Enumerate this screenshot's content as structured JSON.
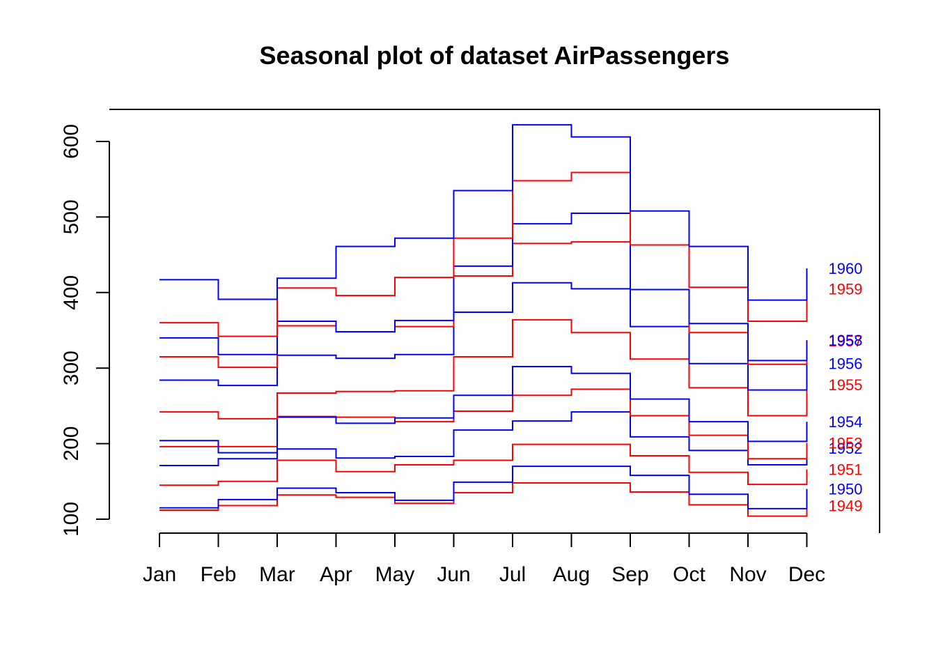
{
  "chart_data": {
    "type": "line",
    "step": true,
    "title": "Seasonal plot of dataset AirPassengers",
    "xlabel": "",
    "ylabel": "",
    "categories": [
      "Jan",
      "Feb",
      "Mar",
      "Apr",
      "May",
      "Jun",
      "Jul",
      "Aug",
      "Sep",
      "Oct",
      "Nov",
      "Dec"
    ],
    "yticks": [
      "100",
      "200",
      "300",
      "400",
      "500",
      "600"
    ],
    "ylim": [
      100,
      622
    ],
    "grid": false,
    "legend": "none",
    "series_labels_position": "right",
    "colors": {
      "odd_years": "#ff0000",
      "even_years": "#0000ff",
      "axis": "#000000",
      "background": "#ffffff"
    },
    "series": [
      {
        "name": "1949",
        "color": "#ff0000",
        "values": [
          112,
          118,
          132,
          129,
          121,
          135,
          148,
          148,
          136,
          119,
          104,
          118
        ]
      },
      {
        "name": "1950",
        "color": "#0000ff",
        "values": [
          115,
          126,
          141,
          135,
          125,
          149,
          170,
          170,
          158,
          133,
          114,
          140
        ]
      },
      {
        "name": "1951",
        "color": "#ff0000",
        "values": [
          145,
          150,
          178,
          163,
          172,
          178,
          199,
          199,
          184,
          162,
          146,
          166
        ]
      },
      {
        "name": "1952",
        "color": "#0000ff",
        "values": [
          171,
          180,
          193,
          181,
          183,
          218,
          230,
          242,
          209,
          191,
          172,
          194
        ]
      },
      {
        "name": "1953",
        "color": "#ff0000",
        "values": [
          196,
          196,
          236,
          235,
          229,
          243,
          264,
          272,
          237,
          211,
          180,
          201
        ]
      },
      {
        "name": "1954",
        "color": "#0000ff",
        "values": [
          204,
          188,
          235,
          227,
          234,
          264,
          302,
          293,
          259,
          229,
          203,
          229
        ]
      },
      {
        "name": "1955",
        "color": "#ff0000",
        "values": [
          242,
          233,
          267,
          269,
          270,
          315,
          364,
          347,
          312,
          274,
          237,
          278
        ]
      },
      {
        "name": "1956",
        "color": "#0000ff",
        "values": [
          284,
          277,
          317,
          313,
          318,
          374,
          413,
          405,
          355,
          306,
          271,
          306
        ]
      },
      {
        "name": "1957",
        "color": "#ff0000",
        "values": [
          315,
          301,
          356,
          348,
          355,
          422,
          465,
          467,
          404,
          347,
          305,
          336
        ]
      },
      {
        "name": "1958",
        "color": "#0000ff",
        "values": [
          340,
          318,
          362,
          348,
          363,
          435,
          491,
          505,
          404,
          359,
          310,
          337
        ]
      },
      {
        "name": "1959",
        "color": "#ff0000",
        "values": [
          360,
          342,
          406,
          396,
          420,
          472,
          548,
          559,
          463,
          407,
          362,
          405
        ]
      },
      {
        "name": "1960",
        "color": "#0000ff",
        "values": [
          417,
          391,
          419,
          461,
          472,
          535,
          622,
          606,
          508,
          461,
          390,
          432
        ]
      }
    ]
  }
}
